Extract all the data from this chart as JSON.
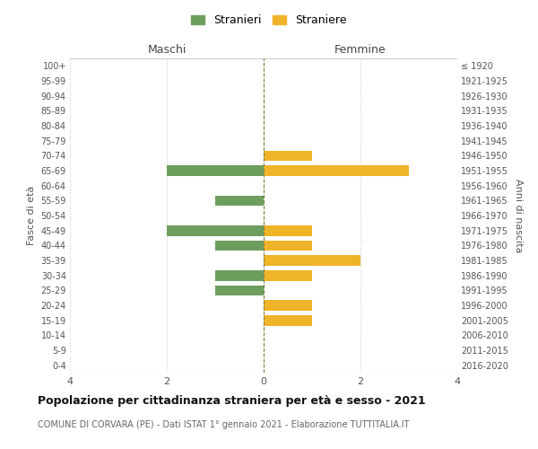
{
  "age_groups": [
    "0-4",
    "5-9",
    "10-14",
    "15-19",
    "20-24",
    "25-29",
    "30-34",
    "35-39",
    "40-44",
    "45-49",
    "50-54",
    "55-59",
    "60-64",
    "65-69",
    "70-74",
    "75-79",
    "80-84",
    "85-89",
    "90-94",
    "95-99",
    "100+"
  ],
  "birth_years": [
    "2016-2020",
    "2011-2015",
    "2006-2010",
    "2001-2005",
    "1996-2000",
    "1991-1995",
    "1986-1990",
    "1981-1985",
    "1976-1980",
    "1971-1975",
    "1966-1970",
    "1961-1965",
    "1956-1960",
    "1951-1955",
    "1946-1950",
    "1941-1945",
    "1936-1940",
    "1931-1935",
    "1926-1930",
    "1921-1925",
    "≤ 1920"
  ],
  "maschi": [
    0,
    0,
    0,
    0,
    0,
    1,
    1,
    0,
    1,
    2,
    0,
    1,
    0,
    2,
    0,
    0,
    0,
    0,
    0,
    0,
    0
  ],
  "femmine": [
    0,
    0,
    0,
    1,
    1,
    0,
    1,
    2,
    1,
    1,
    0,
    0,
    0,
    3,
    1,
    0,
    0,
    0,
    0,
    0,
    0
  ],
  "color_maschi": "#6e9e5e",
  "color_femmine": "#f0b429",
  "background_color": "#ffffff",
  "grid_color": "#cccccc",
  "center_line_color": "#808040",
  "xlim": 4,
  "title": "Popolazione per cittadinanza straniera per età e sesso - 2021",
  "subtitle": "COMUNE DI CORVARA (PE) - Dati ISTAT 1° gennaio 2021 - Elaborazione TUTTITALIA.IT",
  "ylabel_left": "Fasce di età",
  "ylabel_right": "Anni di nascita",
  "header_maschi": "Maschi",
  "header_femmine": "Femmine",
  "legend_maschi": "Stranieri",
  "legend_femmine": "Straniere"
}
